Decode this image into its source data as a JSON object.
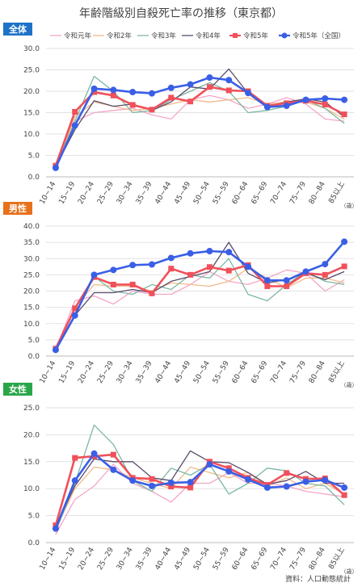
{
  "title": "年齢階級別自殺死亡率の推移（東京都）",
  "source": "資料：人口動態統計",
  "colors": {
    "R1": "#f4a6c8",
    "R2": "#f2b98a",
    "R3": "#7cb7a3",
    "R4": "#5a4a6a",
    "R5": "#f0505a",
    "R5n": "#3a5fe6",
    "badge_all": "#1e73c8",
    "badge_male": "#e8711b",
    "badge_female": "#2aa64a"
  },
  "chart_data": [
    {
      "type": "line",
      "label": "全体",
      "categories": [
        "10~14",
        "15~19",
        "20~24",
        "25~29",
        "30~34",
        "35~39",
        "40~44",
        "45~49",
        "50~54",
        "55~59",
        "60~64",
        "65~69",
        "70~74",
        "75~79",
        "80~84",
        "85以上"
      ],
      "x_unit": "（歳）",
      "ylim": [
        0,
        30
      ],
      "yticks": [
        "0.0",
        "5.0",
        "10.0",
        "15.0",
        "20.0",
        "25.0",
        "30.0"
      ],
      "grid": true,
      "legend": "top",
      "series": [
        {
          "name": "令和元年",
          "key": "R1",
          "values": [
            2.5,
            13,
            15,
            15.5,
            16,
            14.5,
            13.5,
            18,
            19,
            18,
            16,
            17,
            18.5,
            17,
            13.5,
            13
          ]
        },
        {
          "name": "令和2年",
          "key": "R2",
          "values": [
            2.3,
            14,
            17.5,
            16.5,
            15.5,
            16,
            17,
            18,
            17.5,
            18,
            18.5,
            17,
            17.5,
            17.5,
            16,
            13.5
          ]
        },
        {
          "name": "令和3年",
          "key": "R3",
          "values": [
            2.2,
            13,
            23.5,
            20,
            15,
            15.5,
            18,
            20,
            22,
            20,
            15,
            15.5,
            16.5,
            18,
            16,
            12.5
          ]
        },
        {
          "name": "令和4年",
          "key": "R4",
          "values": [
            2.4,
            11,
            17.8,
            16.5,
            17,
            15.5,
            17.5,
            21,
            20.5,
            25.2,
            19.5,
            16.5,
            17.5,
            18.2,
            17.5,
            14
          ]
        },
        {
          "name": "令和5年",
          "key": "R5",
          "values": [
            2.6,
            15.2,
            19.8,
            19,
            16.8,
            15.7,
            18.5,
            17.6,
            21,
            20.2,
            20,
            16.6,
            17.2,
            17.8,
            16.9,
            14.6
          ]
        },
        {
          "name": "令和5年（全国）",
          "key": "R5n",
          "values": [
            2.1,
            12,
            20.6,
            20.3,
            19.8,
            19.5,
            20.8,
            21.6,
            23.2,
            22.6,
            19.6,
            16.3,
            16.6,
            18,
            18.3,
            18
          ]
        }
      ]
    },
    {
      "type": "line",
      "label": "男性",
      "categories": [
        "10~14",
        "15~19",
        "20~24",
        "25~29",
        "30~34",
        "35~39",
        "40~44",
        "45~49",
        "50~54",
        "55~59",
        "60~64",
        "65~69",
        "70~74",
        "75~79",
        "80~84",
        "85以上"
      ],
      "x_unit": "（歳）",
      "ylim": [
        0,
        40
      ],
      "yticks": [
        "0.0",
        "5.0",
        "10.0",
        "15.0",
        "20.0",
        "25.0",
        "30.0",
        "35.0",
        "40.0"
      ],
      "grid": true,
      "series": [
        {
          "name": "令和元年",
          "key": "R1",
          "values": [
            2,
            17,
            18.5,
            16,
            20,
            19,
            19,
            22,
            26,
            23,
            22,
            24,
            26.5,
            25.5,
            20,
            23.5
          ]
        },
        {
          "name": "令和2年",
          "key": "R2",
          "values": [
            2,
            15,
            22,
            21.5,
            21.5,
            20,
            22.5,
            22,
            21.5,
            23,
            27,
            24,
            21,
            24,
            24,
            22.5
          ]
        },
        {
          "name": "令和3年",
          "key": "R3",
          "values": [
            1.8,
            13,
            24.5,
            20,
            19,
            22,
            20.5,
            25,
            24,
            30,
            19,
            17,
            22,
            26,
            23,
            22
          ]
        },
        {
          "name": "令和4年",
          "key": "R4",
          "values": [
            2.2,
            12.5,
            19.5,
            19.5,
            20.5,
            19.5,
            23,
            24.5,
            26,
            35,
            25.5,
            22.5,
            23.5,
            25.5,
            23.5,
            26
          ]
        },
        {
          "name": "令和5年",
          "key": "R5",
          "values": [
            2.3,
            14.7,
            24.3,
            22,
            22,
            19.3,
            26.9,
            25,
            27.4,
            26.3,
            28,
            21.5,
            21.5,
            25.5,
            25,
            27.6
          ]
        },
        {
          "name": "令和5年（全国）",
          "key": "R5n",
          "values": [
            1.9,
            12.5,
            25,
            26.5,
            28,
            28.2,
            30.2,
            31.6,
            32.3,
            32,
            27.5,
            23.3,
            23.3,
            26,
            28.3,
            35.2
          ]
        }
      ]
    },
    {
      "type": "line",
      "label": "女性",
      "categories": [
        "10~14",
        "15~19",
        "20~24",
        "25~29",
        "30~34",
        "35~39",
        "40~44",
        "45~49",
        "50~54",
        "55~59",
        "60~64",
        "65~69",
        "70~74",
        "75~79",
        "80~84",
        "85以上"
      ],
      "x_unit": "（歳）",
      "ylim": [
        0,
        25
      ],
      "yticks": [
        "0.0",
        "5.0",
        "10.0",
        "15.0",
        "20.0",
        "25.0"
      ],
      "grid": true,
      "series": [
        {
          "name": "令和元年",
          "key": "R1",
          "values": [
            1.5,
            8,
            10.5,
            14.5,
            11,
            9.5,
            7.5,
            11,
            11,
            13,
            11,
            11,
            10.5,
            9.5,
            9,
            8.5
          ]
        },
        {
          "name": "令和2年",
          "key": "R2",
          "values": [
            2.5,
            10,
            14,
            13.5,
            12,
            11,
            10,
            14,
            13,
            12,
            13,
            10.5,
            12,
            10,
            11,
            9
          ]
        },
        {
          "name": "令和3年",
          "key": "R3",
          "values": [
            2,
            11,
            21.8,
            18.2,
            11.5,
            9.5,
            13.8,
            12.5,
            14.5,
            9,
            11,
            13.8,
            13.3,
            11,
            10.5,
            7
          ]
        },
        {
          "name": "令和4年",
          "key": "R4",
          "values": [
            3,
            10.5,
            15.5,
            15,
            15,
            12,
            11.5,
            17,
            15,
            14.8,
            13,
            10.8,
            11.5,
            13.2,
            11,
            11
          ]
        },
        {
          "name": "令和5年",
          "key": "R5",
          "values": [
            3.2,
            15.7,
            16,
            16.3,
            12,
            11.8,
            10.4,
            10.2,
            15,
            13.8,
            12,
            10.7,
            12.9,
            11.8,
            11.9,
            8.8
          ]
        },
        {
          "name": "令和5年（全国）",
          "key": "R5n",
          "values": [
            2.6,
            11.5,
            16.5,
            13.5,
            11.5,
            10.5,
            11.1,
            11.2,
            14.5,
            13.2,
            11.7,
            10.2,
            10.4,
            11.3,
            11.6,
            10.2
          ]
        }
      ]
    }
  ]
}
